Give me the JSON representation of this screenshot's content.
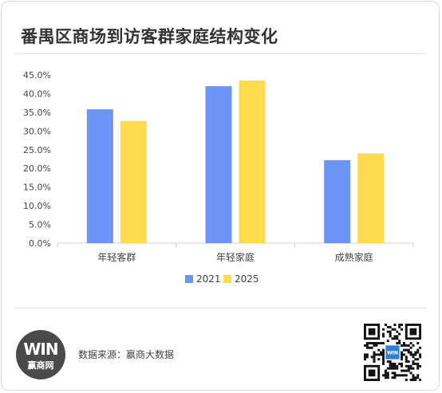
{
  "title": "番禺区商场到访客群家庭结构变化",
  "source": "数据来源：赢商大数据",
  "logo": {
    "mark": "WIN",
    "text": "赢商网"
  },
  "qr": {
    "center_label": "WIN"
  },
  "colors": {
    "s2021": "#6d95f7",
    "s2025": "#fedb4e",
    "axis": "#d0d0d0",
    "text": "#444444"
  },
  "chart_data": {
    "type": "bar",
    "categories": [
      "年轻客群",
      "年轻家庭",
      "成熟家庭"
    ],
    "series": [
      {
        "name": "2021",
        "values": [
          35.8,
          42.0,
          22.2
        ]
      },
      {
        "name": "2025",
        "values": [
          32.7,
          43.5,
          24.0
        ]
      }
    ],
    "ylim": [
      0,
      45
    ],
    "yticks": [
      "0.0%",
      "5.0%",
      "10.0%",
      "15.0%",
      "20.0%",
      "25.0%",
      "30.0%",
      "35.0%",
      "40.0%",
      "45.0%"
    ],
    "legend_position": "bottom",
    "grid": false
  }
}
